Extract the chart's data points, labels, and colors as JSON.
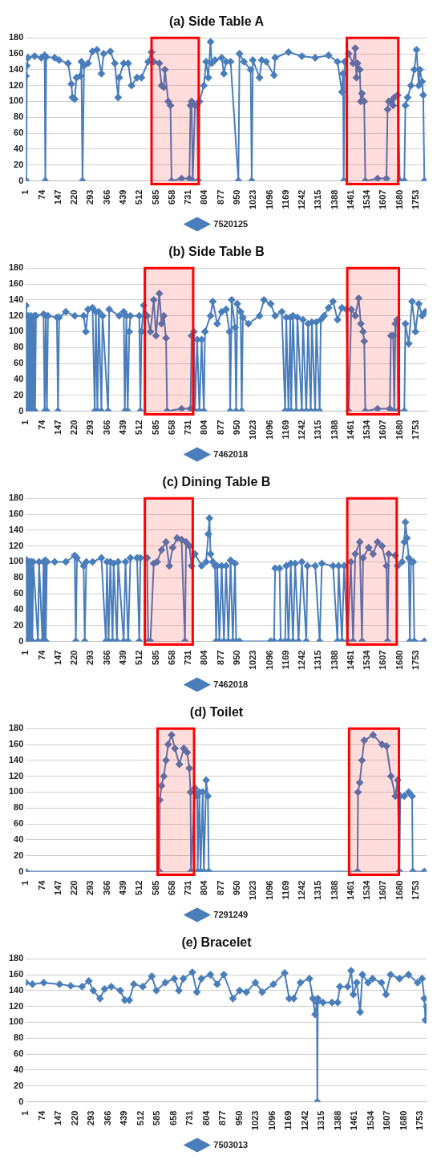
{
  "chart_data": [
    {
      "type": "line",
      "title": "(a) Side Table A",
      "xlim": [
        1,
        1800
      ],
      "xticks": [
        1,
        74,
        147,
        220,
        293,
        366,
        439,
        512,
        585,
        658,
        731,
        804,
        877,
        950,
        1023,
        1096,
        1169,
        1242,
        1315,
        1388,
        1461,
        1534,
        1607,
        1680,
        1753
      ],
      "ylim": [
        0,
        180
      ],
      "yticks": [
        0,
        20,
        40,
        60,
        80,
        100,
        120,
        140,
        160,
        180
      ],
      "grid": "y",
      "legend": "bottom",
      "marker": "diamond",
      "bands": [
        {
          "axis": "x",
          "from": 565,
          "to": 777,
          "color": "#ff0000"
        },
        {
          "axis": "x",
          "from": 1442,
          "to": 1673,
          "color": "#ff0000"
        }
      ],
      "series": [
        {
          "name": "7520125",
          "color": "#4a7ebb",
          "x": [
            1,
            3,
            5,
            10,
            40,
            70,
            85,
            88,
            92,
            130,
            150,
            190,
            205,
            210,
            220,
            228,
            245,
            250,
            255,
            262,
            280,
            300,
            320,
            340,
            350,
            380,
            400,
            415,
            420,
            440,
            460,
            475,
            500,
            520,
            550,
            565,
            575,
            600,
            610,
            620,
            625,
            640,
            650,
            655,
            700,
            735,
            740,
            745,
            750,
            760,
            770,
            775,
            780,
            800,
            810,
            820,
            830,
            835,
            850,
            880,
            890,
            900,
            920,
            955,
            960,
            980,
            1010,
            1015,
            1020,
            1050,
            1060,
            1080,
            1115,
            1120,
            1180,
            1240,
            1300,
            1360,
            1400,
            1420,
            1425,
            1428,
            1432,
            1450,
            1470,
            1480,
            1485,
            1490,
            1500,
            1505,
            1510,
            1520,
            1525,
            1580,
            1620,
            1625,
            1630,
            1640,
            1650,
            1655,
            1670,
            1680,
            1700,
            1705,
            1715,
            1730,
            1745,
            1755,
            1765,
            1770,
            1780,
            1785,
            1790
          ],
          "values": [
            132,
            0,
            145,
            155,
            157,
            155,
            158,
            0,
            156,
            155,
            152,
            148,
            122,
            105,
            103,
            130,
            132,
            150,
            0,
            145,
            148,
            163,
            165,
            135,
            160,
            163,
            148,
            105,
            130,
            148,
            148,
            120,
            130,
            130,
            150,
            162,
            150,
            148,
            120,
            118,
            140,
            100,
            95,
            0,
            3,
            3,
            95,
            100,
            0,
            95,
            95,
            0,
            100,
            120,
            150,
            130,
            175,
            148,
            152,
            155,
            135,
            150,
            150,
            0,
            160,
            150,
            140,
            0,
            152,
            130,
            152,
            150,
            133,
            155,
            162,
            157,
            155,
            158,
            150,
            112,
            135,
            0,
            150,
            160,
            148,
            167,
            130,
            148,
            140,
            100,
            110,
            100,
            0,
            3,
            3,
            90,
            100,
            100,
            95,
            105,
            108,
            0,
            0,
            95,
            105,
            120,
            140,
            165,
            120,
            140,
            125,
            108,
            0
          ]
        }
      ]
    },
    {
      "type": "line",
      "title": "(b) Side Table B",
      "xlim": [
        1,
        1800
      ],
      "xticks": [
        1,
        74,
        147,
        220,
        293,
        366,
        439,
        512,
        585,
        658,
        731,
        804,
        877,
        950,
        1023,
        1096,
        1169,
        1242,
        1315,
        1388,
        1461,
        1534,
        1607,
        1680,
        1753
      ],
      "ylim": [
        0,
        180
      ],
      "yticks": [
        0,
        20,
        40,
        60,
        80,
        100,
        120,
        140,
        160,
        180
      ],
      "grid": "y",
      "legend": "bottom",
      "marker": "diamond",
      "bands": [
        {
          "axis": "x",
          "from": 535,
          "to": 752,
          "color": "#ff0000"
        },
        {
          "axis": "x",
          "from": 1444,
          "to": 1676,
          "color": "#ff0000"
        }
      ],
      "series": [
        {
          "name": "7462018",
          "color": "#4a7ebb",
          "x": [
            1,
            3,
            5,
            8,
            11,
            14,
            17,
            20,
            24,
            27,
            30,
            34,
            38,
            42,
            46,
            80,
            85,
            90,
            95,
            100,
            140,
            145,
            150,
            180,
            220,
            260,
            270,
            280,
            300,
            310,
            315,
            322,
            328,
            340,
            345,
            370,
            375,
            420,
            440,
            445,
            452,
            458,
            465,
            470,
            510,
            515,
            520,
            530,
            545,
            560,
            575,
            585,
            600,
            610,
            620,
            630,
            635,
            700,
            740,
            745,
            755,
            760,
            770,
            780,
            790,
            800,
            805,
            830,
            840,
            860,
            880,
            900,
            915,
            918,
            925,
            940,
            945,
            950,
            965,
            970,
            975,
            1000,
            1050,
            1070,
            1100,
            1120,
            1150,
            1165,
            1170,
            1180,
            1188,
            1192,
            1200,
            1215,
            1220,
            1240,
            1245,
            1260,
            1268,
            1280,
            1285,
            1300,
            1305,
            1320,
            1325,
            1340,
            1360,
            1380,
            1400,
            1420,
            1440,
            1450,
            1462,
            1480,
            1495,
            1505,
            1515,
            1520,
            1525,
            1580,
            1635,
            1640,
            1650,
            1655,
            1660,
            1668,
            1672,
            1700,
            1705,
            1720,
            1735,
            1750,
            1765,
            1780,
            1795
          ],
          "values": [
            133,
            0,
            120,
            0,
            120,
            0,
            118,
            0,
            120,
            0,
            118,
            0,
            120,
            0,
            120,
            122,
            0,
            120,
            0,
            120,
            118,
            0,
            118,
            125,
            120,
            120,
            100,
            128,
            130,
            0,
            125,
            0,
            125,
            0,
            120,
            0,
            128,
            120,
            125,
            0,
            120,
            0,
            100,
            120,
            120,
            0,
            100,
            133,
            120,
            100,
            140,
            95,
            148,
            110,
            120,
            92,
            0,
            3,
            3,
            95,
            100,
            0,
            90,
            0,
            90,
            0,
            100,
            120,
            138,
            110,
            125,
            128,
            100,
            0,
            140,
            105,
            0,
            135,
            125,
            0,
            118,
            110,
            120,
            140,
            135,
            120,
            125,
            0,
            118,
            0,
            118,
            0,
            120,
            0,
            118,
            0,
            115,
            0,
            110,
            0,
            112,
            0,
            112,
            0,
            115,
            120,
            130,
            138,
            115,
            130,
            128,
            0,
            128,
            120,
            142,
            110,
            100,
            88,
            0,
            3,
            3,
            95,
            95,
            0,
            110,
            115,
            0,
            0,
            110,
            85,
            138,
            100,
            135,
            120,
            125
          ]
        }
      ]
    },
    {
      "type": "line",
      "title": "(c) Dining Table B",
      "xlim": [
        1,
        1800
      ],
      "xticks": [
        1,
        74,
        147,
        220,
        293,
        366,
        439,
        512,
        585,
        658,
        731,
        804,
        877,
        950,
        1023,
        1096,
        1169,
        1242,
        1315,
        1388,
        1461,
        1534,
        1607,
        1680,
        1753
      ],
      "ylim": [
        0,
        180
      ],
      "yticks": [
        0,
        20,
        40,
        60,
        80,
        100,
        120,
        140,
        160,
        180
      ],
      "grid": "y",
      "legend": "bottom",
      "marker": "diamond",
      "bands": [
        {
          "axis": "x",
          "from": 535,
          "to": 750,
          "color": "#ff0000"
        },
        {
          "axis": "x",
          "from": 1444,
          "to": 1666,
          "color": "#ff0000"
        }
      ],
      "series": [
        {
          "name": "7462018",
          "color": "#4a7ebb",
          "x": [
            1,
            3,
            6,
            9,
            12,
            15,
            18,
            22,
            26,
            30,
            34,
            55,
            60,
            75,
            80,
            82,
            88,
            90,
            95,
            130,
            180,
            220,
            225,
            230,
            260,
            265,
            272,
            300,
            340,
            360,
            365,
            372,
            380,
            390,
            395,
            410,
            415,
            440,
            448,
            460,
            470,
            500,
            510,
            515,
            545,
            550,
            560,
            575,
            590,
            610,
            630,
            645,
            660,
            680,
            700,
            715,
            720,
            735,
            745,
            760,
            790,
            810,
            820,
            825,
            830,
            840,
            850,
            855,
            860,
            870,
            880,
            890,
            900,
            910,
            920,
            930,
            940,
            945,
            960,
            1100,
            1115,
            1120,
            1140,
            1145,
            1165,
            1170,
            1180,
            1190,
            1200,
            1210,
            1225,
            1240,
            1260,
            1265,
            1300,
            1320,
            1330,
            1380,
            1400,
            1405,
            1420,
            1430,
            1445,
            1460,
            1470,
            1480,
            1500,
            1510,
            1515,
            1540,
            1560,
            1580,
            1600,
            1620,
            1625,
            1630,
            1660,
            1670,
            1690,
            1700,
            1705,
            1712,
            1720,
            1725,
            1730,
            1740,
            1745,
            1790
          ],
          "values": [
            103,
            0,
            100,
            0,
            100,
            0,
            100,
            0,
            100,
            0,
            100,
            0,
            100,
            0,
            100,
            0,
            102,
            0,
            100,
            100,
            100,
            108,
            0,
            105,
            95,
            0,
            100,
            100,
            105,
            0,
            100,
            0,
            100,
            0,
            98,
            0,
            100,
            0,
            100,
            0,
            105,
            105,
            0,
            105,
            105,
            0,
            0,
            98,
            100,
            115,
            125,
            95,
            118,
            130,
            128,
            0,
            125,
            120,
            95,
            110,
            95,
            100,
            135,
            155,
            110,
            100,
            95,
            0,
            95,
            0,
            95,
            0,
            95,
            0,
            102,
            0,
            98,
            0,
            0,
            0,
            0,
            92,
            92,
            0,
            0,
            95,
            0,
            98,
            0,
            98,
            0,
            100,
            0,
            95,
            95,
            0,
            98,
            95,
            0,
            95,
            0,
            95,
            0,
            100,
            0,
            110,
            125,
            0,
            105,
            118,
            110,
            125,
            120,
            95,
            0,
            110,
            108,
            95,
            100,
            125,
            150,
            130,
            105,
            0,
            100,
            100,
            0,
            0
          ]
        }
      ]
    },
    {
      "type": "line",
      "title": "(d) Toilet",
      "xlim": [
        1,
        1800
      ],
      "xticks": [
        1,
        74,
        147,
        220,
        293,
        366,
        439,
        512,
        585,
        658,
        731,
        804,
        877,
        950,
        1023,
        1096,
        1169,
        1242,
        1315,
        1388,
        1461,
        1534,
        1607,
        1680,
        1753
      ],
      "ylim": [
        0,
        180
      ],
      "yticks": [
        0,
        20,
        40,
        60,
        80,
        100,
        120,
        140,
        160,
        180
      ],
      "grid": "y",
      "legend": "bottom",
      "marker": "diamond",
      "bands": [
        {
          "axis": "x",
          "from": 592,
          "to": 756,
          "color": "#ff0000"
        },
        {
          "axis": "x",
          "from": 1452,
          "to": 1676,
          "color": "#ff0000"
        }
      ],
      "series": [
        {
          "name": "7291249",
          "color": "#4a7ebb",
          "x": [
            1,
            600,
            602,
            610,
            620,
            630,
            640,
            655,
            670,
            690,
            710,
            725,
            735,
            740,
            742,
            760,
            770,
            772,
            780,
            785,
            795,
            800,
            810,
            818,
            822,
            1490,
            1492,
            1500,
            1510,
            1520,
            1560,
            1600,
            1620,
            1640,
            1660,
            1670,
            1678,
            1682,
            1700,
            1720,
            1735,
            1738,
            1790
          ],
          "values": [
            0,
            0,
            90,
            108,
            120,
            140,
            160,
            172,
            155,
            135,
            155,
            150,
            130,
            100,
            0,
            105,
            95,
            0,
            100,
            0,
            100,
            0,
            115,
            95,
            0,
            0,
            100,
            112,
            140,
            165,
            172,
            160,
            158,
            120,
            95,
            115,
            0,
            95,
            95,
            100,
            95,
            0,
            0
          ]
        }
      ]
    },
    {
      "type": "line",
      "title": "(e) Bracelet",
      "xlim": [
        1,
        1780
      ],
      "xticks": [
        1,
        74,
        147,
        220,
        293,
        366,
        439,
        512,
        585,
        658,
        731,
        804,
        877,
        950,
        1023,
        1096,
        1169,
        1242,
        1315,
        1388,
        1461,
        1534,
        1607,
        1680,
        1753
      ],
      "ylim": [
        0,
        180
      ],
      "yticks": [
        0,
        20,
        40,
        60,
        80,
        100,
        120,
        140,
        160,
        180
      ],
      "grid": "y",
      "legend": "bottom",
      "marker": "diamond",
      "series": [
        {
          "name": "7503013",
          "color": "#4a7ebb",
          "x": [
            1,
            30,
            80,
            150,
            200,
            250,
            280,
            300,
            330,
            350,
            380,
            420,
            440,
            460,
            480,
            520,
            560,
            580,
            620,
            660,
            680,
            700,
            740,
            760,
            780,
            820,
            850,
            880,
            920,
            950,
            980,
            1020,
            1050,
            1100,
            1150,
            1170,
            1190,
            1220,
            1260,
            1275,
            1285,
            1293,
            1295,
            1297,
            1320,
            1360,
            1385,
            1395,
            1430,
            1445,
            1455,
            1470,
            1485,
            1495,
            1520,
            1540,
            1580,
            1600,
            1620,
            1660,
            1700,
            1740,
            1760,
            1770,
            1775,
            1780
          ],
          "values": [
            150,
            148,
            150,
            148,
            146,
            145,
            152,
            140,
            130,
            142,
            145,
            140,
            128,
            128,
            148,
            145,
            158,
            140,
            150,
            155,
            140,
            155,
            163,
            138,
            155,
            160,
            148,
            160,
            130,
            140,
            138,
            150,
            138,
            148,
            162,
            130,
            130,
            150,
            155,
            130,
            110,
            125,
            0,
            130,
            125,
            125,
            125,
            145,
            145,
            165,
            135,
            150,
            113,
            160,
            150,
            155,
            150,
            135,
            160,
            155,
            160,
            150,
            155,
            130,
            103,
            120
          ]
        }
      ]
    }
  ]
}
